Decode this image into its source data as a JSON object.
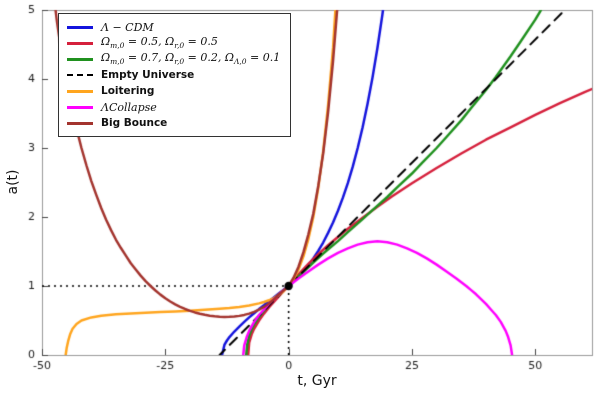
{
  "chart_data": {
    "type": "line",
    "title": "",
    "xlabel": "t, Gyr",
    "ylabel": "a(t)",
    "xlim": [
      -50,
      61.5
    ],
    "ylim": [
      0,
      5
    ],
    "xticks": [
      -50,
      -25,
      0,
      25,
      50
    ],
    "yticks": [
      0,
      1,
      2,
      3,
      4,
      5
    ],
    "grid": false,
    "legend_position": "top-left",
    "frame_color": "#999999",
    "tick_color": "#444444",
    "tick_label_color": "#1c1c1c",
    "marker": {
      "x": 0,
      "y": 1,
      "color": "#000000",
      "note": "normalization point a(0)=1"
    },
    "guides": [
      {
        "type": "dotted-h",
        "y": 1,
        "x0": -50,
        "x1": 0,
        "color": "#000000"
      },
      {
        "type": "dotted-v",
        "x": 0,
        "y0": 0,
        "y1": 1,
        "color": "#000000"
      }
    ],
    "series": [
      {
        "name": "lambda-cdm",
        "label": "Λ − CDM",
        "math": true,
        "color": "#1414dd",
        "dash": "solid",
        "points": [
          [
            -13.5,
            0
          ],
          [
            -13.2,
            0.09
          ],
          [
            -13,
            0.15
          ],
          [
            -12.5,
            0.21
          ],
          [
            -12,
            0.26
          ],
          [
            -11,
            0.34
          ],
          [
            -10,
            0.41
          ],
          [
            -9,
            0.48
          ],
          [
            -8,
            0.545
          ],
          [
            -7,
            0.605
          ],
          [
            -6,
            0.665
          ],
          [
            -5,
            0.72
          ],
          [
            -4,
            0.78
          ],
          [
            -3,
            0.835
          ],
          [
            -2,
            0.89
          ],
          [
            -1,
            0.945
          ],
          [
            0,
            1.0
          ],
          [
            1,
            1.06
          ],
          [
            2,
            1.13
          ],
          [
            3,
            1.21
          ],
          [
            4,
            1.3
          ],
          [
            5,
            1.4
          ],
          [
            6,
            1.51
          ],
          [
            7,
            1.63
          ],
          [
            8,
            1.77
          ],
          [
            9,
            1.92
          ],
          [
            10,
            2.09
          ],
          [
            11,
            2.28
          ],
          [
            12,
            2.49
          ],
          [
            13,
            2.73
          ],
          [
            14,
            3.0
          ],
          [
            15,
            3.3
          ],
          [
            16,
            3.64
          ],
          [
            17,
            4.02
          ],
          [
            18,
            4.45
          ],
          [
            19,
            4.93
          ],
          [
            19.6,
            5.25
          ]
        ]
      },
      {
        "name": "matter-radiation",
        "label": "Ω_{m,0} = 0.5, Ω_{r,0} = 0.5",
        "math": true,
        "color": "#d5203c",
        "dash": "solid",
        "points": [
          [
            -8.2,
            0
          ],
          [
            -8,
            0.18
          ],
          [
            -7.5,
            0.3
          ],
          [
            -7,
            0.38
          ],
          [
            -6,
            0.5
          ],
          [
            -5,
            0.6
          ],
          [
            -4,
            0.69
          ],
          [
            -3,
            0.77
          ],
          [
            -2,
            0.85
          ],
          [
            -1,
            0.93
          ],
          [
            0,
            1.0
          ],
          [
            2,
            1.17
          ],
          [
            4,
            1.32
          ],
          [
            6,
            1.46
          ],
          [
            8,
            1.59
          ],
          [
            10,
            1.71
          ],
          [
            12,
            1.83
          ],
          [
            15,
            1.99
          ],
          [
            18,
            2.15
          ],
          [
            21,
            2.3
          ],
          [
            25,
            2.49
          ],
          [
            30,
            2.71
          ],
          [
            35,
            2.92
          ],
          [
            40,
            3.12
          ],
          [
            45,
            3.3
          ],
          [
            50,
            3.48
          ],
          [
            55,
            3.65
          ],
          [
            60,
            3.81
          ],
          [
            62,
            3.87
          ]
        ]
      },
      {
        "name": "matter-radiation-lambda",
        "label": "Ω_{m,0} = 0.7, Ω_{r,0} = 0.2, Ω_{Λ,0} = 0.1",
        "math": true,
        "color": "#20911f",
        "dash": "solid",
        "points": [
          [
            -8.6,
            0
          ],
          [
            -8.4,
            0.15
          ],
          [
            -8,
            0.28
          ],
          [
            -7.5,
            0.37
          ],
          [
            -7,
            0.44
          ],
          [
            -6,
            0.55
          ],
          [
            -5,
            0.64
          ],
          [
            -4,
            0.73
          ],
          [
            -3,
            0.82
          ],
          [
            -2,
            0.88
          ],
          [
            -1,
            0.94
          ],
          [
            0,
            1.0
          ],
          [
            2,
            1.14
          ],
          [
            4,
            1.27
          ],
          [
            5,
            1.34
          ],
          [
            7,
            1.47
          ],
          [
            10,
            1.65
          ],
          [
            12,
            1.78
          ],
          [
            15,
            1.97
          ],
          [
            17,
            2.1
          ],
          [
            20,
            2.29
          ],
          [
            22,
            2.43
          ],
          [
            25,
            2.63
          ],
          [
            27,
            2.78
          ],
          [
            30,
            3.0
          ],
          [
            32,
            3.16
          ],
          [
            35,
            3.4
          ],
          [
            37,
            3.58
          ],
          [
            40,
            3.84
          ],
          [
            42,
            4.03
          ],
          [
            45,
            4.33
          ],
          [
            47,
            4.54
          ],
          [
            50,
            4.86
          ],
          [
            51,
            4.98
          ],
          [
            52.2,
            5.15
          ]
        ]
      },
      {
        "name": "empty-universe",
        "label": "Empty Universe",
        "math": false,
        "color": "#000000",
        "dash": "dashed",
        "points": [
          [
            -14.3,
            -0.03
          ],
          [
            -14,
            0
          ],
          [
            0,
            1.0
          ],
          [
            28,
            3.0
          ],
          [
            56,
            5.0
          ],
          [
            58,
            5.15
          ]
        ]
      },
      {
        "name": "loitering",
        "label": "Loitering",
        "math": false,
        "color": "#ffa51e",
        "dash": "solid",
        "points": [
          [
            -45.2,
            0
          ],
          [
            -45,
            0.1
          ],
          [
            -44.7,
            0.2
          ],
          [
            -44.3,
            0.3
          ],
          [
            -43.8,
            0.38
          ],
          [
            -43,
            0.45
          ],
          [
            -42,
            0.5
          ],
          [
            -40,
            0.545
          ],
          [
            -38,
            0.57
          ],
          [
            -35,
            0.59
          ],
          [
            -32,
            0.603
          ],
          [
            -29,
            0.613
          ],
          [
            -26,
            0.622
          ],
          [
            -23,
            0.632
          ],
          [
            -20,
            0.642
          ],
          [
            -17,
            0.655
          ],
          [
            -14,
            0.669
          ],
          [
            -12,
            0.681
          ],
          [
            -10,
            0.697
          ],
          [
            -8,
            0.718
          ],
          [
            -6,
            0.748
          ],
          [
            -5,
            0.768
          ],
          [
            -4,
            0.793
          ],
          [
            -3,
            0.825
          ],
          [
            -2,
            0.868
          ],
          [
            -1,
            0.925
          ],
          [
            0,
            1.0
          ],
          [
            1,
            1.1
          ],
          [
            2,
            1.24
          ],
          [
            3,
            1.43
          ],
          [
            4,
            1.68
          ],
          [
            5,
            2.0
          ],
          [
            6,
            2.42
          ],
          [
            7,
            2.95
          ],
          [
            8,
            3.62
          ],
          [
            9,
            4.45
          ],
          [
            9.7,
            5.25
          ]
        ]
      },
      {
        "name": "lambda-collapse",
        "label": "ΛCollapse",
        "math": true,
        "color": "#ff00ff",
        "dash": "solid",
        "points": [
          [
            -9.2,
            0
          ],
          [
            -9,
            0.14
          ],
          [
            -8.5,
            0.26
          ],
          [
            -8,
            0.35
          ],
          [
            -7,
            0.48
          ],
          [
            -6,
            0.58
          ],
          [
            -5,
            0.66
          ],
          [
            -4,
            0.74
          ],
          [
            -3,
            0.81
          ],
          [
            -2,
            0.88
          ],
          [
            -1,
            0.94
          ],
          [
            0,
            1.0
          ],
          [
            2,
            1.11
          ],
          [
            4,
            1.21
          ],
          [
            6,
            1.31
          ],
          [
            8,
            1.4
          ],
          [
            10,
            1.48
          ],
          [
            12,
            1.545
          ],
          [
            14,
            1.6
          ],
          [
            16,
            1.635
          ],
          [
            18,
            1.65
          ],
          [
            20,
            1.635
          ],
          [
            22,
            1.6
          ],
          [
            24,
            1.545
          ],
          [
            26,
            1.48
          ],
          [
            28,
            1.4
          ],
          [
            30,
            1.31
          ],
          [
            32,
            1.21
          ],
          [
            34,
            1.11
          ],
          [
            36,
            1.0
          ],
          [
            37,
            0.94
          ],
          [
            38,
            0.88
          ],
          [
            39,
            0.81
          ],
          [
            40,
            0.74
          ],
          [
            41,
            0.66
          ],
          [
            42,
            0.58
          ],
          [
            43,
            0.48
          ],
          [
            44,
            0.35
          ],
          [
            44.5,
            0.26
          ],
          [
            45,
            0.14
          ],
          [
            45.3,
            0
          ]
        ]
      },
      {
        "name": "big-bounce",
        "label": "Big Bounce",
        "math": false,
        "color": "#a3342e",
        "dash": "solid",
        "points": [
          [
            -48.3,
            5.7
          ],
          [
            -47.5,
            5.15
          ],
          [
            -47,
            4.85
          ],
          [
            -46,
            4.35
          ],
          [
            -45,
            3.95
          ],
          [
            -44,
            3.6
          ],
          [
            -43,
            3.28
          ],
          [
            -42,
            3.0
          ],
          [
            -41,
            2.75
          ],
          [
            -40,
            2.52
          ],
          [
            -39,
            2.32
          ],
          [
            -38,
            2.13
          ],
          [
            -37,
            1.96
          ],
          [
            -36,
            1.81
          ],
          [
            -35,
            1.67
          ],
          [
            -34,
            1.55
          ],
          [
            -33,
            1.44
          ],
          [
            -32,
            1.33
          ],
          [
            -31,
            1.24
          ],
          [
            -30,
            1.15
          ],
          [
            -29,
            1.07
          ],
          [
            -28,
            1.0
          ],
          [
            -27,
            0.935
          ],
          [
            -26,
            0.875
          ],
          [
            -25,
            0.822
          ],
          [
            -24,
            0.775
          ],
          [
            -23,
            0.734
          ],
          [
            -22,
            0.698
          ],
          [
            -21,
            0.667
          ],
          [
            -20,
            0.64
          ],
          [
            -19,
            0.617
          ],
          [
            -18,
            0.598
          ],
          [
            -17,
            0.582
          ],
          [
            -16,
            0.57
          ],
          [
            -15,
            0.561
          ],
          [
            -14,
            0.555
          ],
          [
            -13,
            0.552
          ],
          [
            -12,
            0.553
          ],
          [
            -11,
            0.558
          ],
          [
            -10,
            0.567
          ],
          [
            -9,
            0.581
          ],
          [
            -8,
            0.6
          ],
          [
            -7,
            0.625
          ],
          [
            -6,
            0.657
          ],
          [
            -5,
            0.697
          ],
          [
            -4,
            0.746
          ],
          [
            -3,
            0.806
          ],
          [
            -2,
            0.878
          ],
          [
            -1,
            0.937
          ],
          [
            0,
            1.0
          ],
          [
            1,
            1.12
          ],
          [
            2,
            1.28
          ],
          [
            3,
            1.49
          ],
          [
            4,
            1.75
          ],
          [
            5,
            2.05
          ],
          [
            6,
            2.45
          ],
          [
            7,
            2.92
          ],
          [
            8,
            3.52
          ],
          [
            9,
            4.26
          ],
          [
            10,
            5.15
          ],
          [
            10.2,
            5.35
          ]
        ]
      }
    ]
  }
}
